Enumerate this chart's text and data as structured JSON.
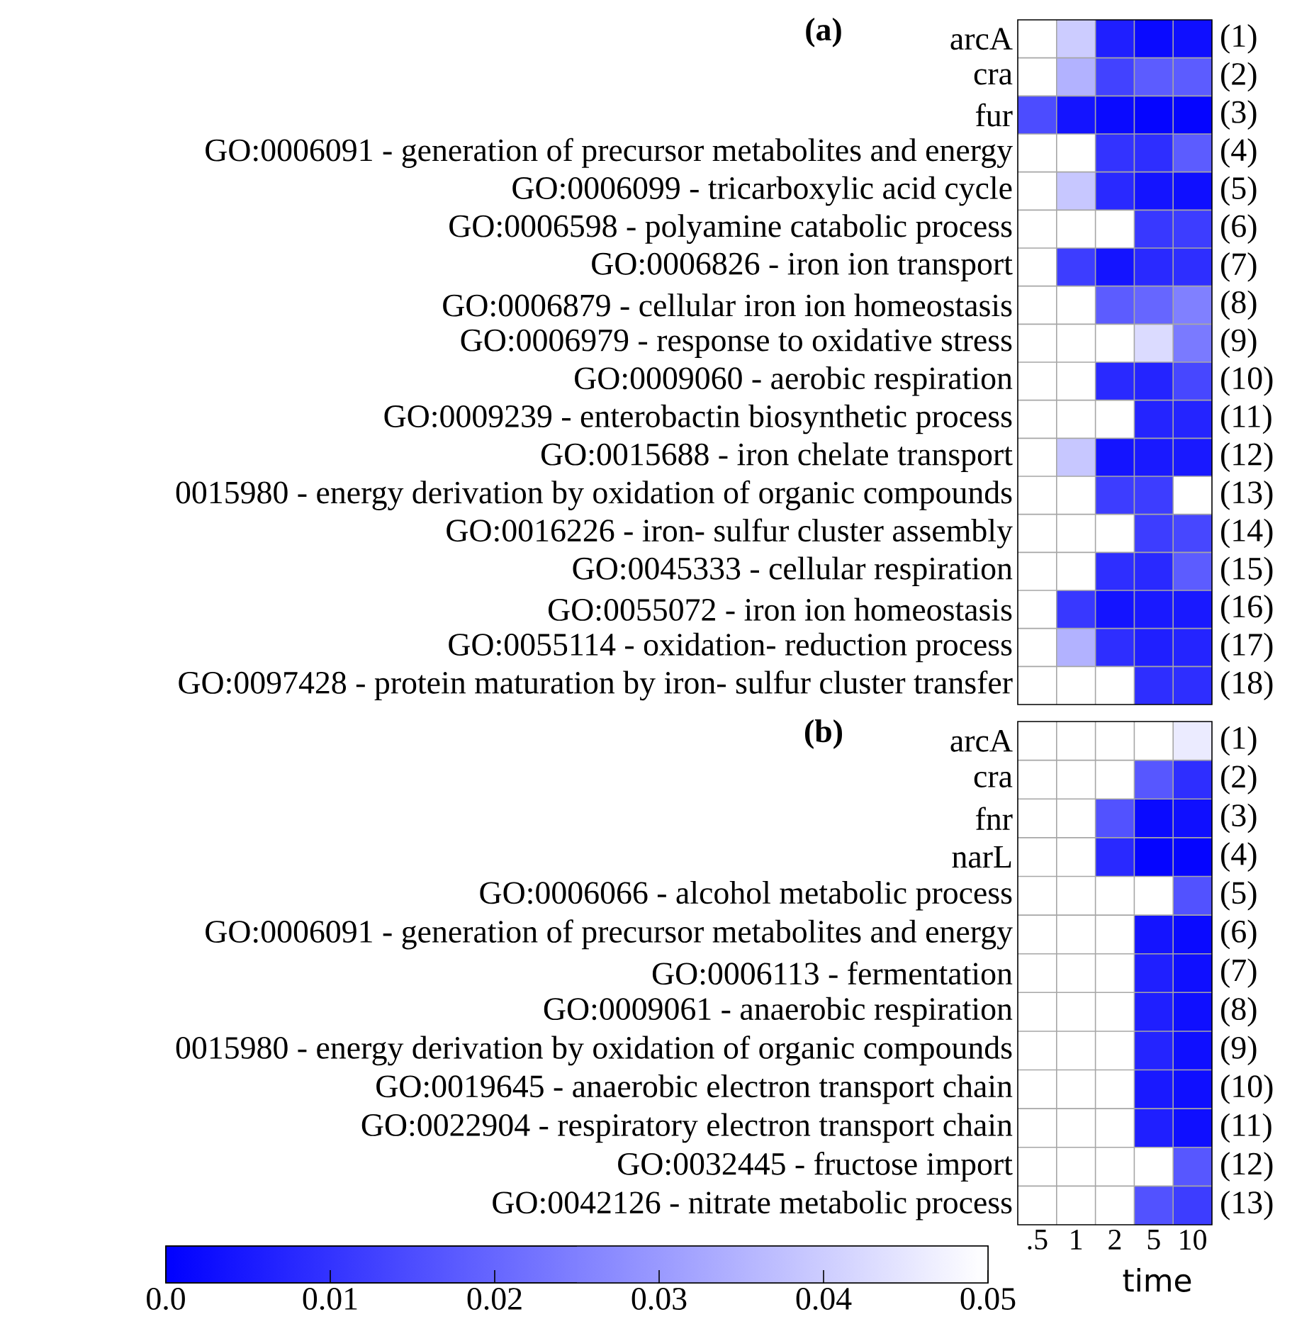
{
  "chart_data": [
    {
      "type": "heatmap",
      "title": "(a)",
      "tick_labels": "y",
      "grid": true,
      "clim": [
        0,
        0.05
      ],
      "cticks": [
        {
          "value": 0,
          "label": "0.0"
        },
        0.01,
        0.02
      ],
      "categories": [
        ".5",
        "1",
        "2",
        "5",
        "10"
      ],
      "y_categories": [
        "arcA",
        "cra",
        "fur",
        "GO:0006091 - generation of precursor metabolites and energy",
        "GO:0006099 - tricarboxylic acid cycle",
        "GO:0006598 - polyamine catabolic process",
        "GO:0006826 - iron ion transport",
        "GO:0006879 - cellular iron ion homeostasis",
        "GO:0006979 - response to oxidative stress",
        "GO:0009060 - aerobic respiration",
        "GO:0009239 - enterobactin biosynthetic process",
        "GO:0015688 - iron chelate transport",
        "0015980 - energy derivation by oxidation of organic compounds",
        "GO:0016226 - iron- sulfur cluster assembly",
        "GO:0045333 - cellular respiration",
        "GO:0055072 - iron ion homeostasis",
        "GO:0055114 - oxidation- reduction process",
        "GO:0097428 - protein maturation by iron- sulfur cluster transfer"
      ],
      "y2_categories": [
        "(1)",
        "(2)",
        "(3)",
        "(4)",
        "(5)",
        "(6)",
        "(7)",
        "(8)",
        "(9)",
        "(10)",
        "(11)",
        "(12)",
        "(13)",
        "(14)",
        "(15)",
        "(16)",
        "(17)",
        "(18)"
      ],
      "cells": [
        [
          0.05,
          0.04,
          0.006,
          0.002,
          0.003
        ],
        [
          0.05,
          0.035,
          0.013,
          0.018,
          0.018
        ],
        [
          0.015,
          0.004,
          0.002,
          0.001,
          0.001
        ],
        [
          0.05,
          0.05,
          0.01,
          0.009,
          0.018
        ],
        [
          0.05,
          0.039,
          0.008,
          0.004,
          0.003
        ],
        [
          0.05,
          0.05,
          0.05,
          0.011,
          0.012
        ],
        [
          0.05,
          0.012,
          0.004,
          0.008,
          0.009
        ],
        [
          0.05,
          0.05,
          0.018,
          0.02,
          0.025
        ],
        [
          0.05,
          0.05,
          0.05,
          0.043,
          0.024
        ],
        [
          0.05,
          0.05,
          0.008,
          0.007,
          0.014
        ],
        [
          0.05,
          0.05,
          0.05,
          0.007,
          0.007
        ],
        [
          0.05,
          0.039,
          0.004,
          0.005,
          0.005
        ],
        [
          0.05,
          0.05,
          0.012,
          0.012,
          0.05
        ],
        [
          0.05,
          0.05,
          0.05,
          0.012,
          0.014
        ],
        [
          0.05,
          0.05,
          0.009,
          0.008,
          0.018
        ],
        [
          0.05,
          0.011,
          0.004,
          0.005,
          0.005
        ],
        [
          0.05,
          0.035,
          0.009,
          0.006,
          0.007
        ],
        [
          0.05,
          0.05,
          0.05,
          0.009,
          0.009
        ]
      ]
    },
    {
      "type": "heatmap",
      "title": "(b)",
      "xlabel": "time",
      "grid": true,
      "clim": [
        0,
        0.05
      ],
      "cticks": [
        0.03,
        0.04,
        0.05
      ],
      "categories": [
        ".5",
        "1",
        "2",
        "5",
        "10"
      ],
      "y_categories": [
        "arcA",
        "cra",
        "fnr",
        "narL",
        "GO:0006066 - alcohol metabolic process",
        "GO:0006091 - generation of precursor metabolites and energy",
        "GO:0006113 - fermentation",
        "GO:0009061 - anaerobic respiration",
        "0015980 - energy derivation by oxidation of organic compounds",
        "GO:0019645 - anaerobic electron transport chain",
        "GO:0022904 - respiratory electron transport chain",
        "GO:0032445 - fructose import",
        "GO:0042126 - nitrate metabolic process"
      ],
      "y2_categories": [
        "(1)",
        "(2)",
        "(3)",
        "(4)",
        "(5)",
        "(6)",
        "(7)",
        "(8)",
        "(9)",
        "(10)",
        "(11)",
        "(12)",
        "(13)"
      ],
      "cells": [
        [
          0.05,
          0.05,
          0.05,
          0.05,
          0.046
        ],
        [
          0.05,
          0.05,
          0.05,
          0.017,
          0.009
        ],
        [
          0.05,
          0.05,
          0.016,
          0.002,
          0.003
        ],
        [
          0.05,
          0.05,
          0.008,
          0.001,
          0.001
        ],
        [
          0.05,
          0.05,
          0.05,
          0.05,
          0.016
        ],
        [
          0.05,
          0.05,
          0.05,
          0.004,
          0.002
        ],
        [
          0.05,
          0.05,
          0.05,
          0.006,
          0.003
        ],
        [
          0.05,
          0.05,
          0.05,
          0.006,
          0.003
        ],
        [
          0.05,
          0.05,
          0.05,
          0.007,
          0.003
        ],
        [
          0.05,
          0.05,
          0.05,
          0.005,
          0.003
        ],
        [
          0.05,
          0.05,
          0.05,
          0.006,
          0.003
        ],
        [
          0.05,
          0.05,
          0.05,
          0.05,
          0.017
        ],
        [
          0.05,
          0.05,
          0.05,
          0.016,
          0.012
        ]
      ]
    }
  ]
}
